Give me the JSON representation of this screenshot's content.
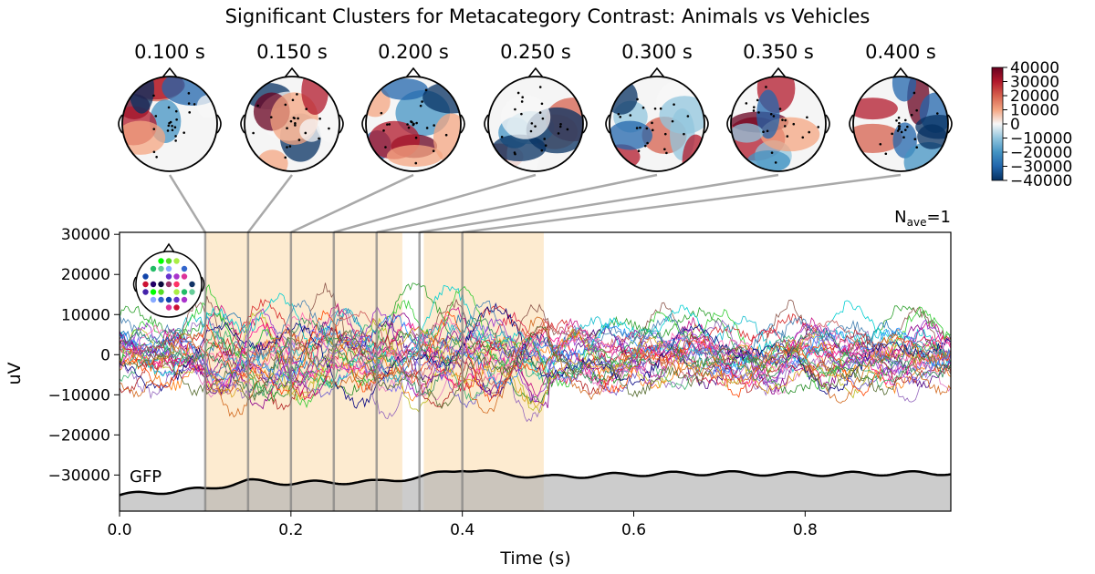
{
  "chart_data": {
    "type": "line",
    "title": "Significant Clusters for Metacategory Contrast: Animals vs Vehicles",
    "xlabel": "Time (s)",
    "ylabel": "uV",
    "xlim": [
      0.0,
      0.97
    ],
    "ylim": [
      -39000,
      30500
    ],
    "xticks": [
      0.0,
      0.2,
      0.4,
      0.6,
      0.8
    ],
    "xtick_labels": [
      "0.0",
      "0.2",
      "0.4",
      "0.6",
      "0.8"
    ],
    "yticks": [
      30000,
      20000,
      10000,
      0,
      -10000,
      -20000,
      -30000
    ],
    "ytick_labels": [
      "30000",
      "20000",
      "10000",
      "0",
      "−10000",
      "−20000",
      "−30000"
    ],
    "nave_label": "N",
    "nave_sub": "ave",
    "nave_value": "=1",
    "gfp_label": "GFP",
    "topomap_times": [
      "0.100 s",
      "0.150 s",
      "0.200 s",
      "0.250 s",
      "0.300 s",
      "0.350 s",
      "0.400 s"
    ],
    "topomap_time_values": [
      0.1,
      0.15,
      0.2,
      0.25,
      0.3,
      0.35,
      0.4
    ],
    "clusters": [
      {
        "start": 0.1,
        "end": 0.33
      },
      {
        "start": 0.355,
        "end": 0.495
      }
    ],
    "colorbar": {
      "ticks": [
        40000,
        30000,
        20000,
        10000,
        0,
        -10000,
        -20000,
        -30000,
        -40000
      ],
      "tick_labels": [
        "40000",
        "30000",
        "20000",
        "10000",
        "0",
        "−10000",
        "−20000",
        "−30000",
        "−40000"
      ],
      "cmap": "RdBu_r"
    },
    "gfp_approx": {
      "x": [
        0.0,
        0.05,
        0.1,
        0.15,
        0.2,
        0.25,
        0.3,
        0.35,
        0.4,
        0.45,
        0.5,
        0.6,
        0.7,
        0.8,
        0.9,
        0.97
      ],
      "y": [
        -35000,
        -34200,
        -33500,
        -31500,
        -32000,
        -31800,
        -31700,
        -30500,
        -28500,
        -29800,
        -30500,
        -29800,
        -29500,
        -29800,
        -29600,
        -29500
      ]
    }
  }
}
